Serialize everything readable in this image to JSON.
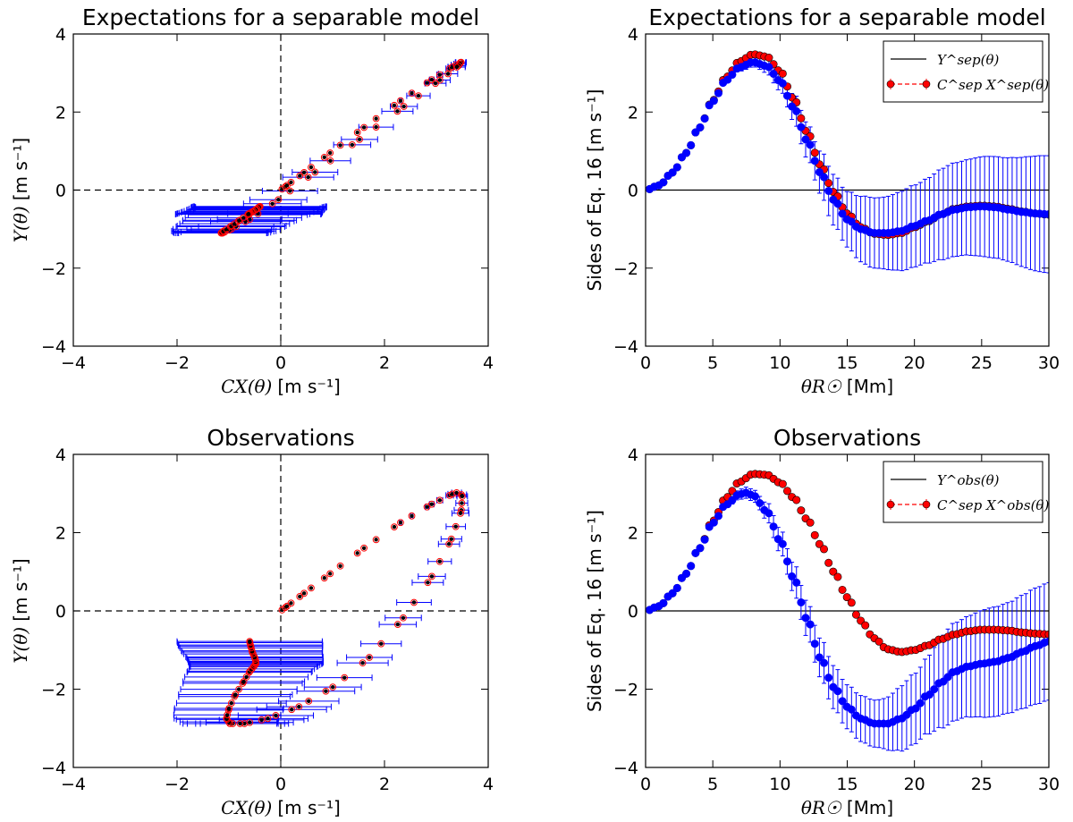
{
  "figure": {
    "panels_note": "Four panels: two scatter comparison plots (left) and two profile plots (right)"
  },
  "colors": {
    "model": "#0000ff",
    "separable": "#ff0000",
    "reference": "#000000",
    "axes": "#000000"
  },
  "chart_data": [
    {
      "id": "top-left",
      "type": "scatter",
      "title": "Expectations for a separable model",
      "xlabel_math": "CX(θ)",
      "xlabel_unit": "[m s⁻¹]",
      "ylabel_math": "Y(θ)",
      "ylabel_unit": "[m s⁻¹]",
      "xlim": [
        -4,
        4
      ],
      "ylim": [
        -4,
        4
      ],
      "xticks": [
        "−4",
        "−2",
        "0",
        "2",
        "4"
      ],
      "yticks": [
        "−4",
        "−2",
        "0",
        "2",
        "4"
      ],
      "trajectory": "separable",
      "xerr_scale": 1.0
    },
    {
      "id": "top-right",
      "type": "line",
      "title": "Expectations for a separable model",
      "xlabel_math": "θR☉",
      "xlabel_unit": "[Mm]",
      "ylabel": "Sides of Eq. 16 [m s⁻¹]",
      "xlim": [
        0,
        30
      ],
      "ylim": [
        -4,
        4
      ],
      "xticks": [
        "0",
        "5",
        "10",
        "15",
        "20",
        "25",
        "30"
      ],
      "yticks": [
        "−4",
        "−2",
        "0",
        "2",
        "4"
      ],
      "legend": [
        "Y^sep(θ)",
        "C^sep X^sep(θ)"
      ],
      "legend_position": "top-right",
      "profile": "separable"
    },
    {
      "id": "bottom-left",
      "type": "scatter",
      "title": "Observations",
      "xlabel_math": "CX(θ)",
      "xlabel_unit": "[m s⁻¹]",
      "ylabel_math": "Y(θ)",
      "ylabel_unit": "[m s⁻¹]",
      "xlim": [
        -4,
        4
      ],
      "ylim": [
        -4,
        4
      ],
      "xticks": [
        "−4",
        "−2",
        "0",
        "2",
        "4"
      ],
      "yticks": [
        "−4",
        "−2",
        "0",
        "2",
        "4"
      ],
      "trajectory": "observed",
      "xerr_scale": 1.0
    },
    {
      "id": "bottom-right",
      "type": "line",
      "title": "Observations",
      "xlabel_math": "θR☉",
      "xlabel_unit": "[Mm]",
      "ylabel": "Sides of Eq. 16 [m s⁻¹]",
      "xlim": [
        0,
        30
      ],
      "ylim": [
        -4,
        4
      ],
      "xticks": [
        "0",
        "5",
        "10",
        "15",
        "20",
        "25",
        "30"
      ],
      "yticks": [
        "−4",
        "−2",
        "0",
        "2",
        "4"
      ],
      "legend": [
        "Y^obs(θ)",
        "C^sep X^obs(θ)"
      ],
      "legend_position": "top-right",
      "profile": "observed"
    }
  ],
  "curves": {
    "separable_red_knots": [
      [
        0,
        0
      ],
      [
        1,
        0.12
      ],
      [
        2,
        0.45
      ],
      [
        3,
        0.95
      ],
      [
        4,
        1.6
      ],
      [
        5,
        2.3
      ],
      [
        6,
        2.9
      ],
      [
        7,
        3.3
      ],
      [
        8,
        3.48
      ],
      [
        9,
        3.42
      ],
      [
        10,
        3.05
      ],
      [
        11,
        2.35
      ],
      [
        12,
        1.5
      ],
      [
        13,
        0.65
      ],
      [
        14,
        -0.05
      ],
      [
        15,
        -0.6
      ],
      [
        16,
        -0.95
      ],
      [
        17,
        -1.12
      ],
      [
        18,
        -1.15
      ],
      [
        19,
        -1.1
      ],
      [
        20,
        -0.95
      ],
      [
        21,
        -0.8
      ],
      [
        22,
        -0.62
      ],
      [
        23,
        -0.48
      ],
      [
        24,
        -0.42
      ],
      [
        25,
        -0.4
      ],
      [
        26,
        -0.42
      ],
      [
        27,
        -0.48
      ],
      [
        28,
        -0.55
      ],
      [
        29,
        -0.6
      ],
      [
        30,
        -0.63
      ]
    ],
    "separable_blue_knots": [
      [
        0,
        0
      ],
      [
        1,
        0.12
      ],
      [
        2,
        0.45
      ],
      [
        3,
        0.95
      ],
      [
        4,
        1.6
      ],
      [
        5,
        2.28
      ],
      [
        6,
        2.82
      ],
      [
        7,
        3.15
      ],
      [
        8,
        3.28
      ],
      [
        9,
        3.18
      ],
      [
        10,
        2.8
      ],
      [
        11,
        2.12
      ],
      [
        12,
        1.28
      ],
      [
        13,
        0.45
      ],
      [
        14,
        -0.25
      ],
      [
        15,
        -0.75
      ],
      [
        16,
        -1.0
      ],
      [
        17,
        -1.1
      ],
      [
        18,
        -1.1
      ],
      [
        19,
        -1.05
      ],
      [
        20,
        -0.92
      ],
      [
        21,
        -0.78
      ],
      [
        22,
        -0.62
      ],
      [
        23,
        -0.5
      ],
      [
        24,
        -0.44
      ],
      [
        25,
        -0.42
      ],
      [
        26,
        -0.44
      ],
      [
        27,
        -0.5
      ],
      [
        28,
        -0.56
      ],
      [
        29,
        -0.6
      ],
      [
        30,
        -0.62
      ]
    ],
    "observed_red_knots": [
      [
        0,
        0
      ],
      [
        1,
        0.12
      ],
      [
        2,
        0.45
      ],
      [
        3,
        0.95
      ],
      [
        4,
        1.6
      ],
      [
        5,
        2.3
      ],
      [
        6,
        2.9
      ],
      [
        7,
        3.3
      ],
      [
        8,
        3.5
      ],
      [
        9,
        3.48
      ],
      [
        10,
        3.28
      ],
      [
        11,
        2.9
      ],
      [
        12,
        2.35
      ],
      [
        13,
        1.7
      ],
      [
        14,
        1.0
      ],
      [
        15,
        0.35
      ],
      [
        16,
        -0.25
      ],
      [
        17,
        -0.7
      ],
      [
        18,
        -0.98
      ],
      [
        19,
        -1.05
      ],
      [
        20,
        -1.0
      ],
      [
        21,
        -0.88
      ],
      [
        22,
        -0.72
      ],
      [
        23,
        -0.6
      ],
      [
        24,
        -0.52
      ],
      [
        25,
        -0.48
      ],
      [
        26,
        -0.48
      ],
      [
        27,
        -0.5
      ],
      [
        28,
        -0.55
      ],
      [
        29,
        -0.58
      ],
      [
        30,
        -0.6
      ]
    ],
    "observed_blue_knots": [
      [
        0,
        0
      ],
      [
        1,
        0.12
      ],
      [
        2,
        0.45
      ],
      [
        3,
        0.95
      ],
      [
        4,
        1.6
      ],
      [
        5,
        2.25
      ],
      [
        6,
        2.72
      ],
      [
        7,
        2.98
      ],
      [
        7.5,
        3.02
      ],
      [
        8,
        2.95
      ],
      [
        9,
        2.55
      ],
      [
        10,
        1.8
      ],
      [
        11,
        0.85
      ],
      [
        12,
        -0.2
      ],
      [
        13,
        -1.2
      ],
      [
        14,
        -1.95
      ],
      [
        15,
        -2.45
      ],
      [
        16,
        -2.75
      ],
      [
        17,
        -2.88
      ],
      [
        18,
        -2.88
      ],
      [
        19,
        -2.75
      ],
      [
        20,
        -2.5
      ],
      [
        21,
        -2.15
      ],
      [
        22,
        -1.82
      ],
      [
        23,
        -1.55
      ],
      [
        24,
        -1.42
      ],
      [
        25,
        -1.35
      ],
      [
        26,
        -1.3
      ],
      [
        27,
        -1.2
      ],
      [
        28,
        -1.05
      ],
      [
        29,
        -0.9
      ],
      [
        30,
        -0.78
      ]
    ],
    "separable_errbar_knots": [
      [
        0,
        0
      ],
      [
        5,
        0.03
      ],
      [
        8,
        0.12
      ],
      [
        10,
        0.25
      ],
      [
        12,
        0.45
      ],
      [
        14,
        0.65
      ],
      [
        17,
        0.9
      ],
      [
        20,
        1.05
      ],
      [
        23,
        1.2
      ],
      [
        26,
        1.3
      ],
      [
        30,
        1.5
      ]
    ],
    "observed_errbar_knots": [
      [
        0,
        0
      ],
      [
        5,
        0.05
      ],
      [
        8,
        0.15
      ],
      [
        10,
        0.3
      ],
      [
        12,
        0.45
      ],
      [
        14,
        0.55
      ],
      [
        17,
        0.6
      ],
      [
        20,
        0.9
      ],
      [
        23,
        1.25
      ],
      [
        26,
        1.4
      ],
      [
        30,
        1.5
      ]
    ],
    "xerr_knots": [
      [
        0,
        0
      ],
      [
        5,
        0.02
      ],
      [
        8,
        0.1
      ],
      [
        10,
        0.2
      ],
      [
        12,
        0.35
      ],
      [
        14,
        0.55
      ],
      [
        17,
        0.85
      ],
      [
        20,
        1.05
      ],
      [
        23,
        1.2
      ],
      [
        26,
        1.3
      ],
      [
        30,
        1.4
      ]
    ],
    "sample_count": 88
  }
}
